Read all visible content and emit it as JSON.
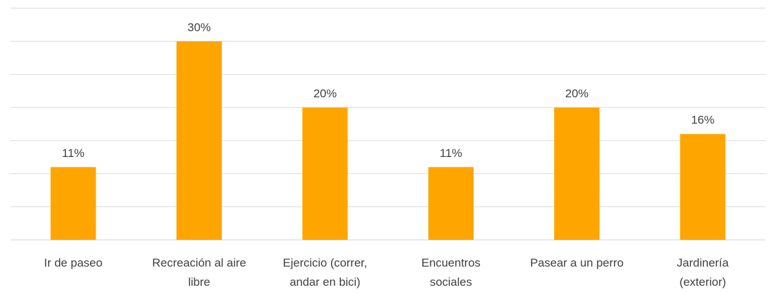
{
  "chart_data": {
    "type": "bar",
    "title": "",
    "xlabel": "",
    "ylabel": "",
    "categories": [
      [
        "Ir de paseo"
      ],
      [
        "Recreación al aire",
        "libre"
      ],
      [
        "Ejercicio (correr,",
        "andar en bici)"
      ],
      [
        "Encuentros",
        "sociales"
      ],
      [
        "Pasear a un perro"
      ],
      [
        "Jardinería",
        "(exterior)"
      ]
    ],
    "values": [
      11,
      30,
      20,
      11,
      20,
      16
    ],
    "data_labels": [
      "11%",
      "30%",
      "20%",
      "11%",
      "20%",
      "16%"
    ],
    "ylim": [
      0,
      35
    ],
    "grid": true,
    "legend": "none",
    "bar_color": "#FFA500"
  }
}
